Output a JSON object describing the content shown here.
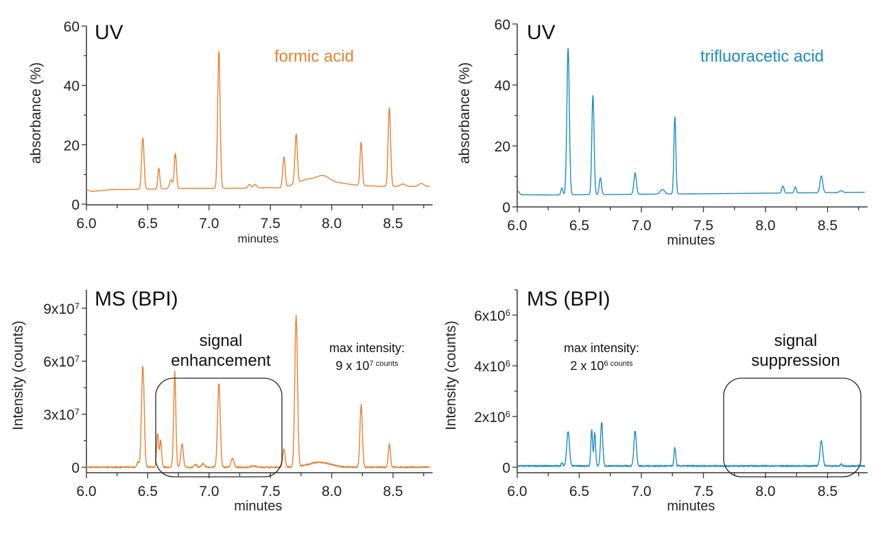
{
  "colors": {
    "formic": "#e5802f",
    "tfa": "#1a8cc0",
    "axis": "#333333",
    "box": "#222222"
  },
  "chart_data": [
    {
      "type": "line",
      "panel_title": "UV",
      "series_label": "formic acid",
      "series_color": "#e5802f",
      "xlabel": "minutes",
      "ylabel": "absorbance (%)",
      "xlim": [
        6.0,
        8.8
      ],
      "ylim": [
        0,
        60
      ],
      "xticks": [
        "6.0",
        "6.5",
        "7.0",
        "7.5",
        "8.0",
        "8.5"
      ],
      "yticks": [
        {
          "value": 0,
          "label": "0"
        },
        {
          "value": 20,
          "label": "20"
        },
        {
          "value": 40,
          "label": "40"
        },
        {
          "value": 60,
          "label": "60"
        }
      ],
      "baseline": [
        [
          6.0,
          4.8
        ],
        [
          6.05,
          4.3
        ],
        [
          6.2,
          4.9
        ],
        [
          6.4,
          5.0
        ],
        [
          6.8,
          5.3
        ],
        [
          7.0,
          5.3
        ],
        [
          7.3,
          5.4
        ],
        [
          7.5,
          5.6
        ],
        [
          7.6,
          5.4
        ],
        [
          7.8,
          8.5
        ],
        [
          8.1,
          7.0
        ],
        [
          8.2,
          6.4
        ],
        [
          8.4,
          6.0
        ],
        [
          8.8,
          6.0
        ]
      ],
      "peaks": [
        [
          6.46,
          17.3,
          0.01
        ],
        [
          6.59,
          7.0,
          0.008
        ],
        [
          6.69,
          3.0,
          0.012
        ],
        [
          6.725,
          11.8,
          0.009
        ],
        [
          7.08,
          46.2,
          0.01
        ],
        [
          7.33,
          1.2,
          0.012
        ],
        [
          7.375,
          1.2,
          0.012
        ],
        [
          7.61,
          10.4,
          0.01
        ],
        [
          7.71,
          16.5,
          0.01
        ],
        [
          7.93,
          1.8,
          0.05
        ],
        [
          8.24,
          14.6,
          0.009
        ],
        [
          8.47,
          26.5,
          0.01
        ],
        [
          8.58,
          0.8,
          0.02
        ],
        [
          8.73,
          1.0,
          0.02
        ]
      ]
    },
    {
      "type": "line",
      "panel_title": "UV",
      "series_label": "trifluoracetic acid",
      "series_color": "#1a8cc0",
      "xlabel": "minutes",
      "ylabel": "absorbance (%)",
      "xlim": [
        6.0,
        8.8
      ],
      "ylim": [
        0,
        60
      ],
      "xticks": [
        "6.0",
        "6.5",
        "7.0",
        "7.5",
        "8.0",
        "8.5"
      ],
      "yticks": [
        {
          "value": 0,
          "label": "0"
        },
        {
          "value": 20,
          "label": "20"
        },
        {
          "value": 40,
          "label": "40"
        },
        {
          "value": 60,
          "label": "60"
        }
      ],
      "baseline": [
        [
          6.0,
          5.5
        ],
        [
          6.03,
          4.0
        ],
        [
          6.3,
          3.9
        ],
        [
          6.5,
          4.0
        ],
        [
          7.5,
          4.3
        ],
        [
          8.0,
          4.5
        ],
        [
          8.8,
          4.8
        ]
      ],
      "peaks": [
        [
          6.36,
          2.3,
          0.008
        ],
        [
          6.41,
          48.0,
          0.01
        ],
        [
          6.61,
          32.5,
          0.009
        ],
        [
          6.67,
          5.5,
          0.009
        ],
        [
          6.95,
          7.0,
          0.01
        ],
        [
          7.17,
          1.5,
          0.018
        ],
        [
          7.27,
          25.3,
          0.008
        ],
        [
          8.14,
          2.3,
          0.009
        ],
        [
          8.24,
          2.0,
          0.008
        ],
        [
          8.45,
          5.5,
          0.011
        ],
        [
          8.61,
          0.6,
          0.012
        ]
      ]
    },
    {
      "type": "line",
      "panel_title": "MS (BPI)",
      "series_color": "#e5802f",
      "xlabel": "minutes",
      "ylabel": "Intensity (counts)",
      "y_unit": 10000000,
      "xlim": [
        6.0,
        8.8
      ],
      "ylim": [
        0,
        10
      ],
      "xticks": [
        "6.0",
        "6.5",
        "7.0",
        "7.5",
        "8.0",
        "8.5"
      ],
      "yticks": [
        {
          "value": 0,
          "label": "0"
        },
        {
          "value": 3,
          "label": "3x10^7"
        },
        {
          "value": 6,
          "label": "6x10^7"
        },
        {
          "value": 9,
          "label": "9x10^7"
        }
      ],
      "baseline": [
        [
          6.0,
          0.0
        ],
        [
          8.8,
          0.0
        ]
      ],
      "peaks": [
        [
          6.42,
          0.3,
          0.008
        ],
        [
          6.46,
          5.8,
          0.011
        ],
        [
          6.58,
          1.9,
          0.008
        ],
        [
          6.605,
          1.5,
          0.008
        ],
        [
          6.72,
          5.3,
          0.009
        ],
        [
          6.78,
          1.3,
          0.01
        ],
        [
          6.89,
          0.15,
          0.01
        ],
        [
          6.95,
          0.2,
          0.012
        ],
        [
          7.08,
          4.7,
          0.011
        ],
        [
          7.19,
          0.5,
          0.012
        ],
        [
          7.36,
          0.08,
          0.02
        ],
        [
          7.61,
          1.0,
          0.01
        ],
        [
          7.71,
          8.6,
          0.011
        ],
        [
          7.9,
          0.28,
          0.09
        ],
        [
          8.24,
          3.5,
          0.01
        ],
        [
          8.47,
          1.3,
          0.009
        ]
      ],
      "annotations": {
        "box_label": [
          "signal",
          "enhancement"
        ],
        "max_label": [
          "max intensity:",
          "9 x 10^7 counts"
        ]
      }
    },
    {
      "type": "line",
      "panel_title": "MS (BPI)",
      "series_color": "#1a8cc0",
      "xlabel": "minutes",
      "ylabel": "Intensity (counts)",
      "y_unit": 1000000,
      "xlim": [
        6.0,
        8.8
      ],
      "ylim": [
        0,
        7
      ],
      "xticks": [
        "6.0",
        "6.5",
        "7.0",
        "7.5",
        "8.0",
        "8.5"
      ],
      "yticks": [
        {
          "value": 0,
          "label": "0"
        },
        {
          "value": 2,
          "label": "2x10^6"
        },
        {
          "value": 4,
          "label": "4x10^6"
        },
        {
          "value": 6,
          "label": "6x10^6"
        }
      ],
      "baseline": [
        [
          6.0,
          0.05
        ],
        [
          8.8,
          0.05
        ]
      ],
      "peaks": [
        [
          6.36,
          0.12,
          0.006
        ],
        [
          6.41,
          1.35,
          0.011
        ],
        [
          6.6,
          1.45,
          0.007
        ],
        [
          6.625,
          1.3,
          0.007
        ],
        [
          6.68,
          1.7,
          0.009
        ],
        [
          6.95,
          1.4,
          0.01
        ],
        [
          7.27,
          0.72,
          0.007
        ],
        [
          8.45,
          1.0,
          0.011
        ],
        [
          8.61,
          0.08,
          0.006
        ]
      ],
      "annotations": {
        "box_label": [
          "signal",
          "suppression"
        ],
        "max_label": [
          "max intensity:",
          "2 x 10^6 counts"
        ]
      }
    }
  ]
}
